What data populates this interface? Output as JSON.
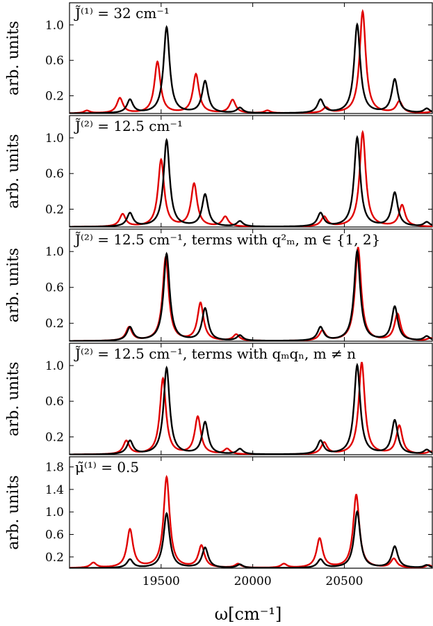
{
  "chart_data": {
    "type": "line",
    "xlabel": "ω[cm⁻¹]",
    "xlim": [
      19000,
      20980
    ],
    "xticks": [
      19500,
      20000,
      20500
    ],
    "colors": {
      "reference": "#000000",
      "modified": "#e00000"
    },
    "panels": [
      {
        "title": "J̃⁽¹⁾ = 32 cm⁻¹",
        "ylabel": "arb. units",
        "ylim": [
          0,
          1.25
        ],
        "yticks": [
          0.2,
          0.6,
          1.0
        ],
        "series": [
          {
            "color": "black",
            "peaks": [
              [
                19330,
                0.15,
                20
              ],
              [
                19530,
                0.97,
                20
              ],
              [
                19740,
                0.36,
                20
              ],
              [
                19930,
                0.06,
                20
              ],
              [
                20370,
                0.15,
                20
              ],
              [
                20570,
                1.0,
                20
              ],
              [
                20775,
                0.38,
                20
              ],
              [
                20950,
                0.05,
                20
              ]
            ]
          },
          {
            "color": "red",
            "peaks": [
              [
                19095,
                0.03,
                20
              ],
              [
                19275,
                0.17,
                20
              ],
              [
                19480,
                0.58,
                20
              ],
              [
                19690,
                0.44,
                20
              ],
              [
                19890,
                0.15,
                20
              ],
              [
                20080,
                0.03,
                20
              ],
              [
                20400,
                0.06,
                20
              ],
              [
                20600,
                1.15,
                20
              ],
              [
                20800,
                0.13,
                20
              ],
              [
                20980,
                0.02,
                20
              ]
            ]
          }
        ]
      },
      {
        "title": "J̃⁽²⁾ = 12.5 cm⁻¹",
        "ylabel": "arb. units",
        "ylim": [
          0,
          1.25
        ],
        "yticks": [
          0.2,
          0.6,
          1.0
        ],
        "series": [
          {
            "color": "black",
            "peaks": [
              [
                19330,
                0.15,
                20
              ],
              [
                19530,
                0.97,
                20
              ],
              [
                19740,
                0.36,
                20
              ],
              [
                19930,
                0.06,
                20
              ],
              [
                20370,
                0.15,
                20
              ],
              [
                20570,
                1.0,
                20
              ],
              [
                20775,
                0.38,
                20
              ],
              [
                20950,
                0.05,
                20
              ]
            ]
          },
          {
            "color": "red",
            "peaks": [
              [
                19290,
                0.14,
                20
              ],
              [
                19500,
                0.75,
                20
              ],
              [
                19680,
                0.48,
                20
              ],
              [
                19850,
                0.11,
                20
              ],
              [
                20390,
                0.11,
                20
              ],
              [
                20600,
                1.06,
                20
              ],
              [
                20815,
                0.24,
                20
              ]
            ]
          }
        ]
      },
      {
        "title": "J̃⁽²⁾ = 12.5 cm⁻¹, terms with q²ₘ, m ∈ {1, 2}",
        "ylabel": "arb. units",
        "ylim": [
          0,
          1.25
        ],
        "yticks": [
          0.2,
          0.6,
          1.0
        ],
        "series": [
          {
            "color": "black",
            "peaks": [
              [
                19330,
                0.15,
                20
              ],
              [
                19530,
                0.97,
                20
              ],
              [
                19740,
                0.36,
                20
              ],
              [
                19930,
                0.06,
                20
              ],
              [
                20370,
                0.15,
                20
              ],
              [
                20570,
                1.0,
                20
              ],
              [
                20775,
                0.38,
                20
              ],
              [
                20950,
                0.05,
                20
              ]
            ]
          },
          {
            "color": "red",
            "peaks": [
              [
                19325,
                0.15,
                20
              ],
              [
                19525,
                0.93,
                20
              ],
              [
                19715,
                0.42,
                20
              ],
              [
                19910,
                0.07,
                20
              ],
              [
                20380,
                0.11,
                20
              ],
              [
                20575,
                1.04,
                20
              ],
              [
                20790,
                0.3,
                20
              ],
              [
                20970,
                0.03,
                20
              ]
            ]
          }
        ]
      },
      {
        "title": "J̃⁽²⁾ = 12.5 cm⁻¹, terms with qₘqₙ, m ≠ n",
        "ylabel": "arb. units",
        "ylim": [
          0,
          1.25
        ],
        "yticks": [
          0.2,
          0.6,
          1.0
        ],
        "series": [
          {
            "color": "black",
            "peaks": [
              [
                19330,
                0.15,
                20
              ],
              [
                19530,
                0.97,
                20
              ],
              [
                19740,
                0.36,
                20
              ],
              [
                19930,
                0.06,
                20
              ],
              [
                20370,
                0.15,
                20
              ],
              [
                20570,
                1.0,
                20
              ],
              [
                20775,
                0.38,
                20
              ],
              [
                20950,
                0.05,
                20
              ]
            ]
          },
          {
            "color": "red",
            "peaks": [
              [
                19310,
                0.15,
                20
              ],
              [
                19510,
                0.85,
                20
              ],
              [
                19700,
                0.42,
                20
              ],
              [
                19860,
                0.06,
                20
              ],
              [
                20390,
                0.13,
                20
              ],
              [
                20595,
                1.03,
                20
              ],
              [
                20800,
                0.32,
                20
              ],
              [
                20970,
                0.03,
                20
              ]
            ]
          }
        ]
      },
      {
        "title": "μ̃⁽¹⁾ = 0.5",
        "ylabel": "arb. units",
        "ylim": [
          0,
          1.98
        ],
        "yticks": [
          0.2,
          0.6,
          1.0,
          1.4,
          1.8
        ],
        "series": [
          {
            "color": "black",
            "peaks": [
              [
                19330,
                0.15,
                20
              ],
              [
                19530,
                0.97,
                20
              ],
              [
                19740,
                0.36,
                20
              ],
              [
                19930,
                0.06,
                20
              ],
              [
                20370,
                0.15,
                20
              ],
              [
                20570,
                1.0,
                20
              ],
              [
                20775,
                0.38,
                20
              ],
              [
                20950,
                0.05,
                20
              ]
            ]
          },
          {
            "color": "red",
            "peaks": [
              [
                19130,
                0.09,
                20
              ],
              [
                19330,
                0.68,
                20
              ],
              [
                19530,
                1.61,
                20
              ],
              [
                19720,
                0.39,
                20
              ],
              [
                19920,
                0.07,
                20
              ],
              [
                20170,
                0.07,
                20
              ],
              [
                20365,
                0.52,
                20
              ],
              [
                20565,
                1.3,
                20
              ],
              [
                20770,
                0.16,
                20
              ],
              [
                20960,
                0.05,
                20
              ]
            ]
          }
        ]
      }
    ]
  }
}
